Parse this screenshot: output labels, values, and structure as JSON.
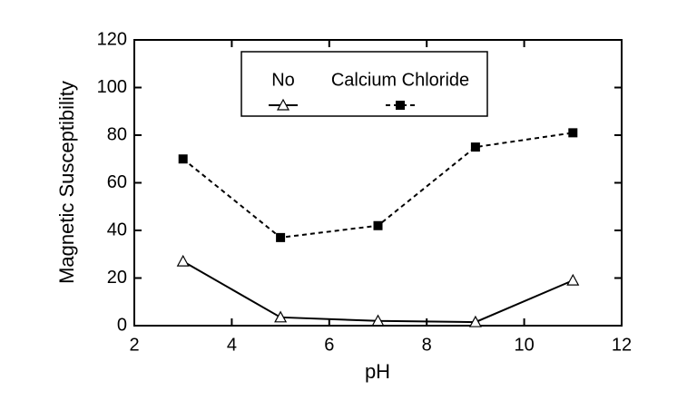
{
  "chart_data": {
    "type": "line",
    "xlabel": "pH",
    "ylabel": "Magnetic Susceptibility",
    "x": [
      3,
      5,
      7,
      9,
      11
    ],
    "series": [
      {
        "name": "No",
        "color": "#000000",
        "linestyle": "solid",
        "marker": "triangle",
        "values": [
          27,
          3.5,
          2,
          1.5,
          19
        ]
      },
      {
        "name": "Calcium Chloride",
        "color": "#000000",
        "linestyle": "dashed",
        "marker": "square",
        "values": [
          70,
          37,
          42,
          75,
          81
        ]
      }
    ],
    "xlim": [
      2,
      12
    ],
    "xticks": [
      2,
      4,
      6,
      8,
      10,
      12
    ],
    "ylim": [
      0,
      120
    ],
    "yticks": [
      0,
      20,
      40,
      60,
      80,
      100,
      120
    ],
    "legend": "upper center"
  }
}
